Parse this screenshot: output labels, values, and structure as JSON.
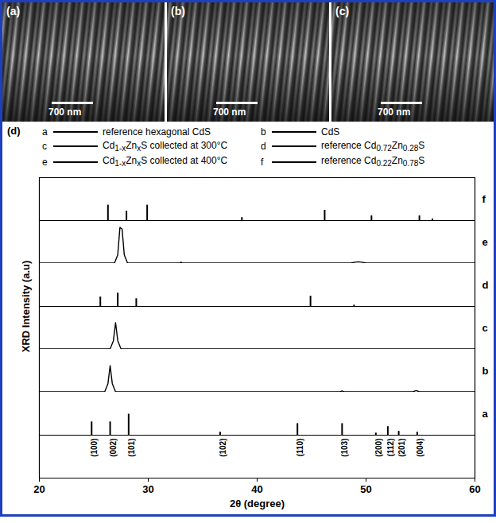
{
  "images": [
    {
      "label": "(a)",
      "scale_bar": "700 nm"
    },
    {
      "label": "(b)",
      "scale_bar": "700 nm"
    },
    {
      "label": "(c)",
      "scale_bar": "700 nm"
    }
  ],
  "chart_data": {
    "type": "line",
    "title": "(d)",
    "xlabel": "2θ (degree)",
    "ylabel": "XRD Intensity (a.u)",
    "xlim": [
      20,
      60
    ],
    "xticks": [
      20,
      30,
      40,
      50,
      60
    ],
    "ylim": [
      0,
      100
    ],
    "tick_labels": "x",
    "series": [
      {
        "key": "a",
        "name": "reference hexagonal CdS",
        "type": "stem",
        "color": "#000000",
        "x": [
          24.8,
          26.5,
          28.2,
          36.6,
          43.7,
          47.8,
          50.9,
          52.0,
          53.0,
          54.7
        ],
        "values": [
          31,
          31,
          49,
          7,
          27,
          27,
          5,
          20,
          9,
          7
        ]
      },
      {
        "key": "b",
        "name": "CdS",
        "type": "line",
        "color": "#000000",
        "x": [
          20,
          26.0,
          26.3,
          26.5,
          26.7,
          27.0,
          47.6,
          47.8,
          48.0,
          54.3,
          54.6,
          54.9,
          60
        ],
        "values": [
          1,
          1,
          20,
          62,
          20,
          1,
          1,
          3,
          1,
          1,
          4,
          1,
          1
        ]
      },
      {
        "key": "c",
        "name": "Cd1-xZnxS collected at 300°C",
        "type": "line",
        "color": "#000000",
        "x": [
          20,
          26.5,
          26.8,
          27.0,
          27.2,
          27.5,
          60
        ],
        "values": [
          1,
          1,
          20,
          62,
          20,
          1,
          1
        ]
      },
      {
        "key": "d",
        "name": "reference Cd0.72Zn0.28S",
        "type": "stem",
        "color": "#000000",
        "x": [
          25.6,
          27.2,
          28.9,
          44.9,
          48.9
        ],
        "values": [
          22,
          31,
          18,
          24,
          3
        ]
      },
      {
        "key": "e",
        "name": "Cd1-xZnxS collected at 400°C",
        "type": "line",
        "color": "#000000",
        "x": [
          20,
          26.9,
          27.2,
          27.4,
          27.6,
          27.8,
          28.1,
          32.9,
          33.0,
          33.1,
          48.6,
          49.0,
          49.3,
          49.6,
          50.0,
          60
        ],
        "values": [
          1,
          1,
          20,
          84,
          80,
          20,
          1,
          1,
          3,
          1,
          1,
          3,
          4,
          3,
          1,
          1
        ]
      },
      {
        "key": "f",
        "name": "reference Cd0.22Zn0.78S",
        "type": "stem",
        "color": "#000000",
        "x": [
          26.3,
          28.0,
          29.9,
          38.6,
          46.2,
          50.5,
          54.9,
          56.1
        ],
        "values": [
          36,
          22,
          36,
          7,
          24,
          11,
          11,
          4
        ]
      }
    ],
    "annotations": [
      {
        "text": "(100)",
        "x": 24.8
      },
      {
        "text": "(002)",
        "x": 26.5
      },
      {
        "text": "(101)",
        "x": 28.2
      },
      {
        "text": "(102)",
        "x": 36.6
      },
      {
        "text": "(110)",
        "x": 43.7
      },
      {
        "text": "(103)",
        "x": 47.8
      },
      {
        "text": "(200)",
        "x": 50.9
      },
      {
        "text": "(112)",
        "x": 52.0
      },
      {
        "text": "(201)",
        "x": 53.0
      },
      {
        "text": "(004)",
        "x": 54.7
      }
    ]
  }
}
